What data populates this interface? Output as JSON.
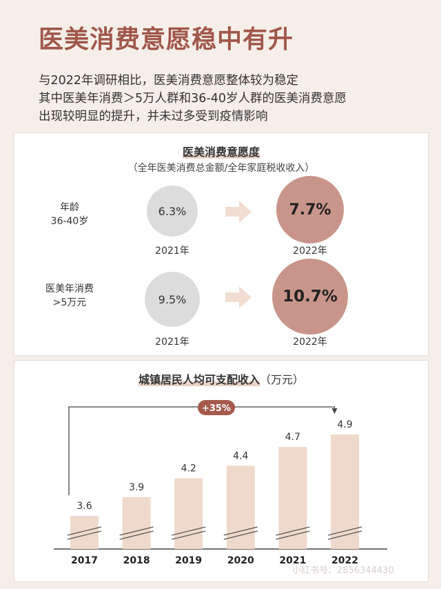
{
  "title": "医美消费意愿稳中有升",
  "subtitle_lines": [
    "与2022年调研相比，医美消费意愿整体较为稳定",
    "其中医美年消费＞5万人群和36-40岁人群的医美消费意愿",
    "出现较明显的提升，并未过多受到疫情影响"
  ],
  "willingness": {
    "title": "医美消费意愿度",
    "note": "（全年医美消费总金额/全年家庭税收收入）",
    "rows": [
      {
        "label_line1": "年龄",
        "label_line2": "36-40岁",
        "before": "6.3%",
        "after": "7.7%",
        "year_before": "2021年",
        "year_after": "2022年"
      },
      {
        "label_line1": "医美年消费",
        "label_line2": ">5万元",
        "before": "9.5%",
        "after": "10.7%",
        "year_before": "2021年",
        "year_after": "2022年"
      }
    ],
    "colors": {
      "old": "#dcdcdc",
      "new": "#c9958a"
    }
  },
  "income_title": "城镇居民人均可支配收入",
  "income_unit": "（万元）",
  "growth_label": "+35%",
  "watermark": "小红书号：2856344430",
  "chart_data": {
    "type": "bar",
    "title": "城镇居民人均可支配收入（万元）",
    "categories": [
      "2017",
      "2018",
      "2019",
      "2020",
      "2021",
      "2022"
    ],
    "values": [
      3.6,
      3.9,
      4.2,
      4.4,
      4.7,
      4.9
    ],
    "value_labels": [
      "3.6",
      "3.9",
      "4.2",
      "4.4",
      "4.7",
      "4.9"
    ],
    "annotation": "+35%",
    "axis_break": true,
    "bar_color": "#efd9cc"
  }
}
